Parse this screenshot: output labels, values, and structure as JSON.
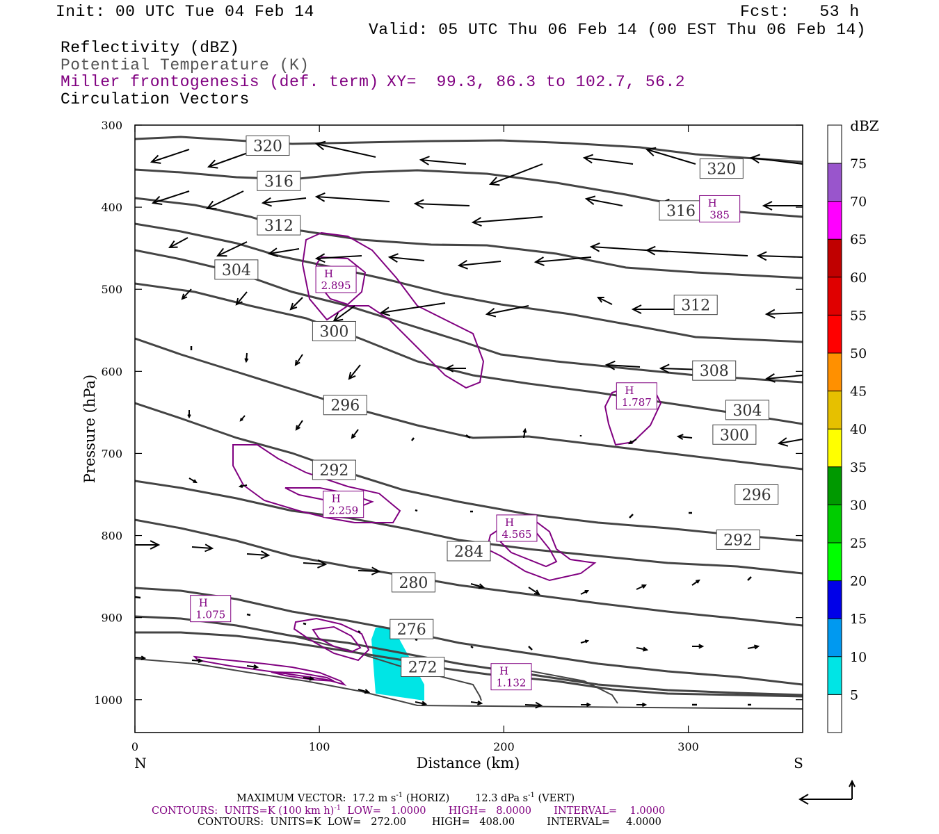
{
  "header": {
    "init": "Init: 00 UTC Tue 04 Feb 14",
    "fcst": "Fcst:   53 h",
    "valid": "Valid: 05 UTC Thu 06 Feb 14 (00 EST Thu 06 Feb 14)",
    "field1": "Reflectivity (dBZ)",
    "field2": "Potential Temperature (K)",
    "field3": "Miller frontogenesis (def. term)",
    "xy": "XY=  99.3, 86.3 to 102.7, 56.2",
    "field4": "Circulation Vectors"
  },
  "footer": {
    "line1a": "MAXIMUM VECTOR:  17.2 m s",
    "line1b": "(HORIZ)",
    "line1c": "12.3 dPa s",
    "line1d": "(VERT)",
    "sup": "-1",
    "line2a": "CONTOURS:  UNITS=K (100 km h)",
    "line2b": "LOW=   1.0000",
    "line2c": "HIGH=   8.0000",
    "line2d": "INTERVAL=    1.0000",
    "line3": "CONTOURS:  UNITS=K  LOW=   272.00        HIGH=   408.00          INTERVAL=     4.0000"
  },
  "colors": {
    "theta": "#444444",
    "front": "#800080",
    "refl": "#00E5E5",
    "vector": "#000000"
  },
  "chart_data": {
    "type": "cross-section",
    "xlabel": "Distance (km)",
    "ylabel": "Pressure (hPa)",
    "x_ticks": [
      0,
      100,
      200,
      300
    ],
    "y_ticks": [
      300,
      400,
      500,
      600,
      700,
      800,
      900,
      1000
    ],
    "xlim": [
      0,
      362
    ],
    "ylim": [
      300,
      1040
    ],
    "y_axis": "pressure, increasing downward",
    "left_end_label": "N",
    "right_end_label": "S",
    "colorbar": {
      "title": "dBZ",
      "levels": [
        5,
        10,
        15,
        20,
        25,
        30,
        35,
        40,
        45,
        50,
        55,
        60,
        65,
        70,
        75
      ],
      "colors": [
        "#00E5E5",
        "#0099F0",
        "#0000E8",
        "#00FF00",
        "#00CC00",
        "#009900",
        "#FFFF00",
        "#E6C000",
        "#FF9000",
        "#FF0000",
        "#E00000",
        "#C00000",
        "#FF00FF",
        "#9955CC",
        "#FFFFFF"
      ]
    },
    "theta_labels": [
      {
        "value": "320",
        "x": 72,
        "p": 325
      },
      {
        "value": "316",
        "x": 78,
        "p": 368
      },
      {
        "value": "312",
        "x": 78,
        "p": 422
      },
      {
        "value": "304",
        "x": 55,
        "p": 476
      },
      {
        "value": "300",
        "x": 108,
        "p": 551
      },
      {
        "value": "296",
        "x": 114,
        "p": 641
      },
      {
        "value": "292",
        "x": 108,
        "p": 720
      },
      {
        "value": "284",
        "x": 181,
        "p": 819
      },
      {
        "value": "280",
        "x": 151,
        "p": 857
      },
      {
        "value": "276",
        "x": 150,
        "p": 914
      },
      {
        "value": "272",
        "x": 156,
        "p": 960
      },
      {
        "value": "320",
        "x": 318,
        "p": 353
      },
      {
        "value": "316",
        "x": 296,
        "p": 404
      },
      {
        "value": "312",
        "x": 304,
        "p": 519
      },
      {
        "value": "308",
        "x": 314,
        "p": 599
      },
      {
        "value": "304",
        "x": 332,
        "p": 647
      },
      {
        "value": "300",
        "x": 325,
        "p": 677
      },
      {
        "value": "296",
        "x": 337,
        "p": 750
      },
      {
        "value": "292",
        "x": 327,
        "p": 805
      }
    ],
    "front_maxima": [
      {
        "label": "H",
        "value": "2.895",
        "x": 109,
        "p": 488
      },
      {
        "label": "H",
        "value": "385",
        "x": 317,
        "p": 402
      },
      {
        "label": "H",
        "value": "1.787",
        "x": 272,
        "p": 630
      },
      {
        "label": "H",
        "value": "2.259",
        "x": 113,
        "p": 762
      },
      {
        "label": "H",
        "value": "4.565",
        "x": 207,
        "p": 791
      },
      {
        "label": "H",
        "value": "1.075",
        "x": 41,
        "p": 889
      },
      {
        "label": "H",
        "value": "1.132",
        "x": 204,
        "p": 972
      }
    ],
    "reflectivity_areas": [
      {
        "dbz": 5,
        "x_range": [
          129,
          157
        ],
        "p_range": [
          910,
          1000
        ]
      }
    ],
    "max_vector": {
      "horiz": "17.2 m s-1",
      "vert": "12.3 dPa s-1"
    }
  }
}
